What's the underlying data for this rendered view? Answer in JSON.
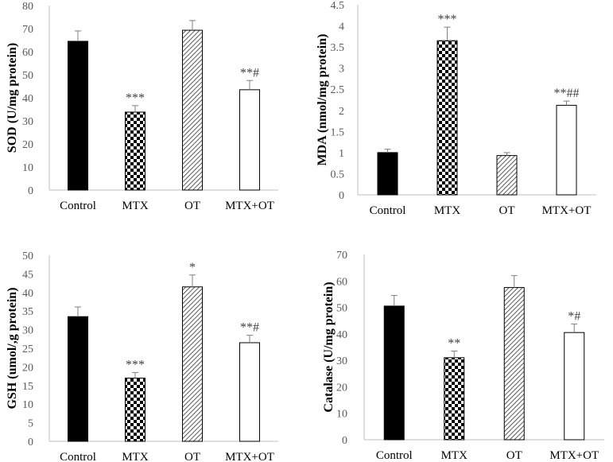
{
  "chart_data": [
    {
      "type": "bar",
      "ylabel": "SOD (U/mg protein)",
      "categories": [
        "Control",
        "MTX",
        "OT",
        "MTX+OT"
      ],
      "values": [
        64.5,
        33.8,
        69.3,
        43.5
      ],
      "errors": [
        4.5,
        2.8,
        4.2,
        4.0
      ],
      "annotations": [
        "",
        "***",
        "",
        "**#"
      ],
      "ylim": [
        0,
        80
      ],
      "yticks": [
        "0",
        "10",
        "20",
        "30",
        "40",
        "50",
        "60",
        "70",
        "80"
      ],
      "fills": [
        "solid",
        "checker",
        "hatch",
        "white"
      ]
    },
    {
      "type": "bar",
      "ylabel": "MDA (nmol/mg protein)",
      "categories": [
        "Control",
        "MTX",
        "OT",
        "MTX+OT"
      ],
      "values": [
        1.0,
        3.65,
        0.93,
        2.12
      ],
      "errors": [
        0.08,
        0.32,
        0.07,
        0.1
      ],
      "annotations": [
        "",
        "***",
        "",
        "**##"
      ],
      "ylim": [
        0,
        4.5
      ],
      "yticks": [
        "0",
        "0.5",
        "1",
        "1.5",
        "2",
        "2.5",
        "3",
        "3.5",
        "4",
        "4.5"
      ],
      "fills": [
        "solid",
        "checker",
        "hatch",
        "white"
      ]
    },
    {
      "type": "bar",
      "ylabel": "GSH (umol/,g protein)",
      "categories": [
        "Control",
        "MTX",
        "OT",
        "MTX+OT"
      ],
      "values": [
        33.5,
        17.0,
        41.5,
        26.5
      ],
      "errors": [
        2.6,
        1.5,
        3.2,
        2.0
      ],
      "annotations": [
        "",
        "***",
        "*",
        "**#"
      ],
      "ylim": [
        0,
        50
      ],
      "yticks": [
        "0",
        "5",
        "10",
        "15",
        "20",
        "25",
        "30",
        "35",
        "40",
        "45",
        "50"
      ],
      "fills": [
        "solid",
        "checker",
        "hatch",
        "white"
      ]
    },
    {
      "type": "bar",
      "ylabel": "Catalase (U/mg protein)",
      "categories": [
        "Control",
        "MTX",
        "OT",
        "MTX+OT"
      ],
      "values": [
        50.5,
        31.0,
        57.5,
        40.5
      ],
      "errors": [
        4.0,
        2.5,
        4.5,
        3.2
      ],
      "annotations": [
        "",
        "**",
        "",
        "*#"
      ],
      "ylim": [
        0,
        70
      ],
      "yticks": [
        "0",
        "10",
        "20",
        "30",
        "40",
        "50",
        "60",
        "70"
      ],
      "fills": [
        "solid",
        "checker",
        "hatch",
        "white"
      ]
    }
  ]
}
